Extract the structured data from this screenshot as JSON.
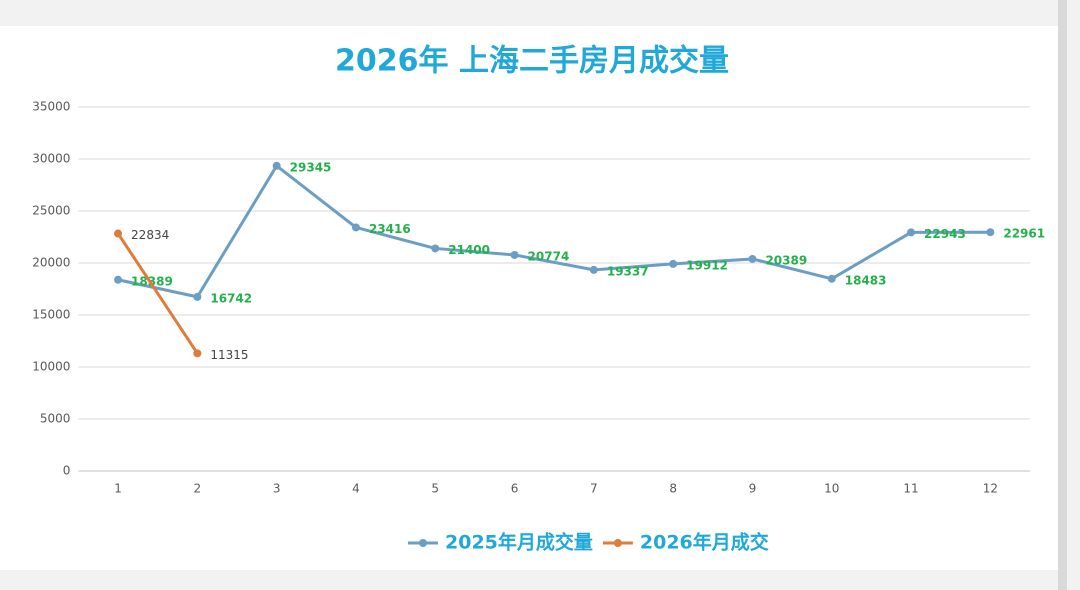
{
  "chart_data": {
    "type": "line",
    "title": "2026年 上海二手房月成交量",
    "categories": [
      "1",
      "2",
      "3",
      "4",
      "5",
      "6",
      "7",
      "8",
      "9",
      "10",
      "11",
      "12"
    ],
    "series": [
      {
        "name": "2025年月成交量",
        "color": "#6a9ec5",
        "label_color": "#22b14c",
        "values": [
          18389,
          16742,
          29345,
          23416,
          21400,
          20774,
          19337,
          19912,
          20389,
          18483,
          22943,
          22961
        ]
      },
      {
        "name": "2026年月成交",
        "color": "#e07b39",
        "label_color": "#444444",
        "values": [
          22834,
          11315,
          null,
          null,
          null,
          null,
          null,
          null,
          null,
          null,
          null,
          null
        ]
      }
    ],
    "ylim": [
      0,
      35000
    ],
    "yticks": [
      0,
      5000,
      10000,
      15000,
      20000,
      25000,
      30000,
      35000
    ],
    "grid": true,
    "legend": "bottom"
  }
}
